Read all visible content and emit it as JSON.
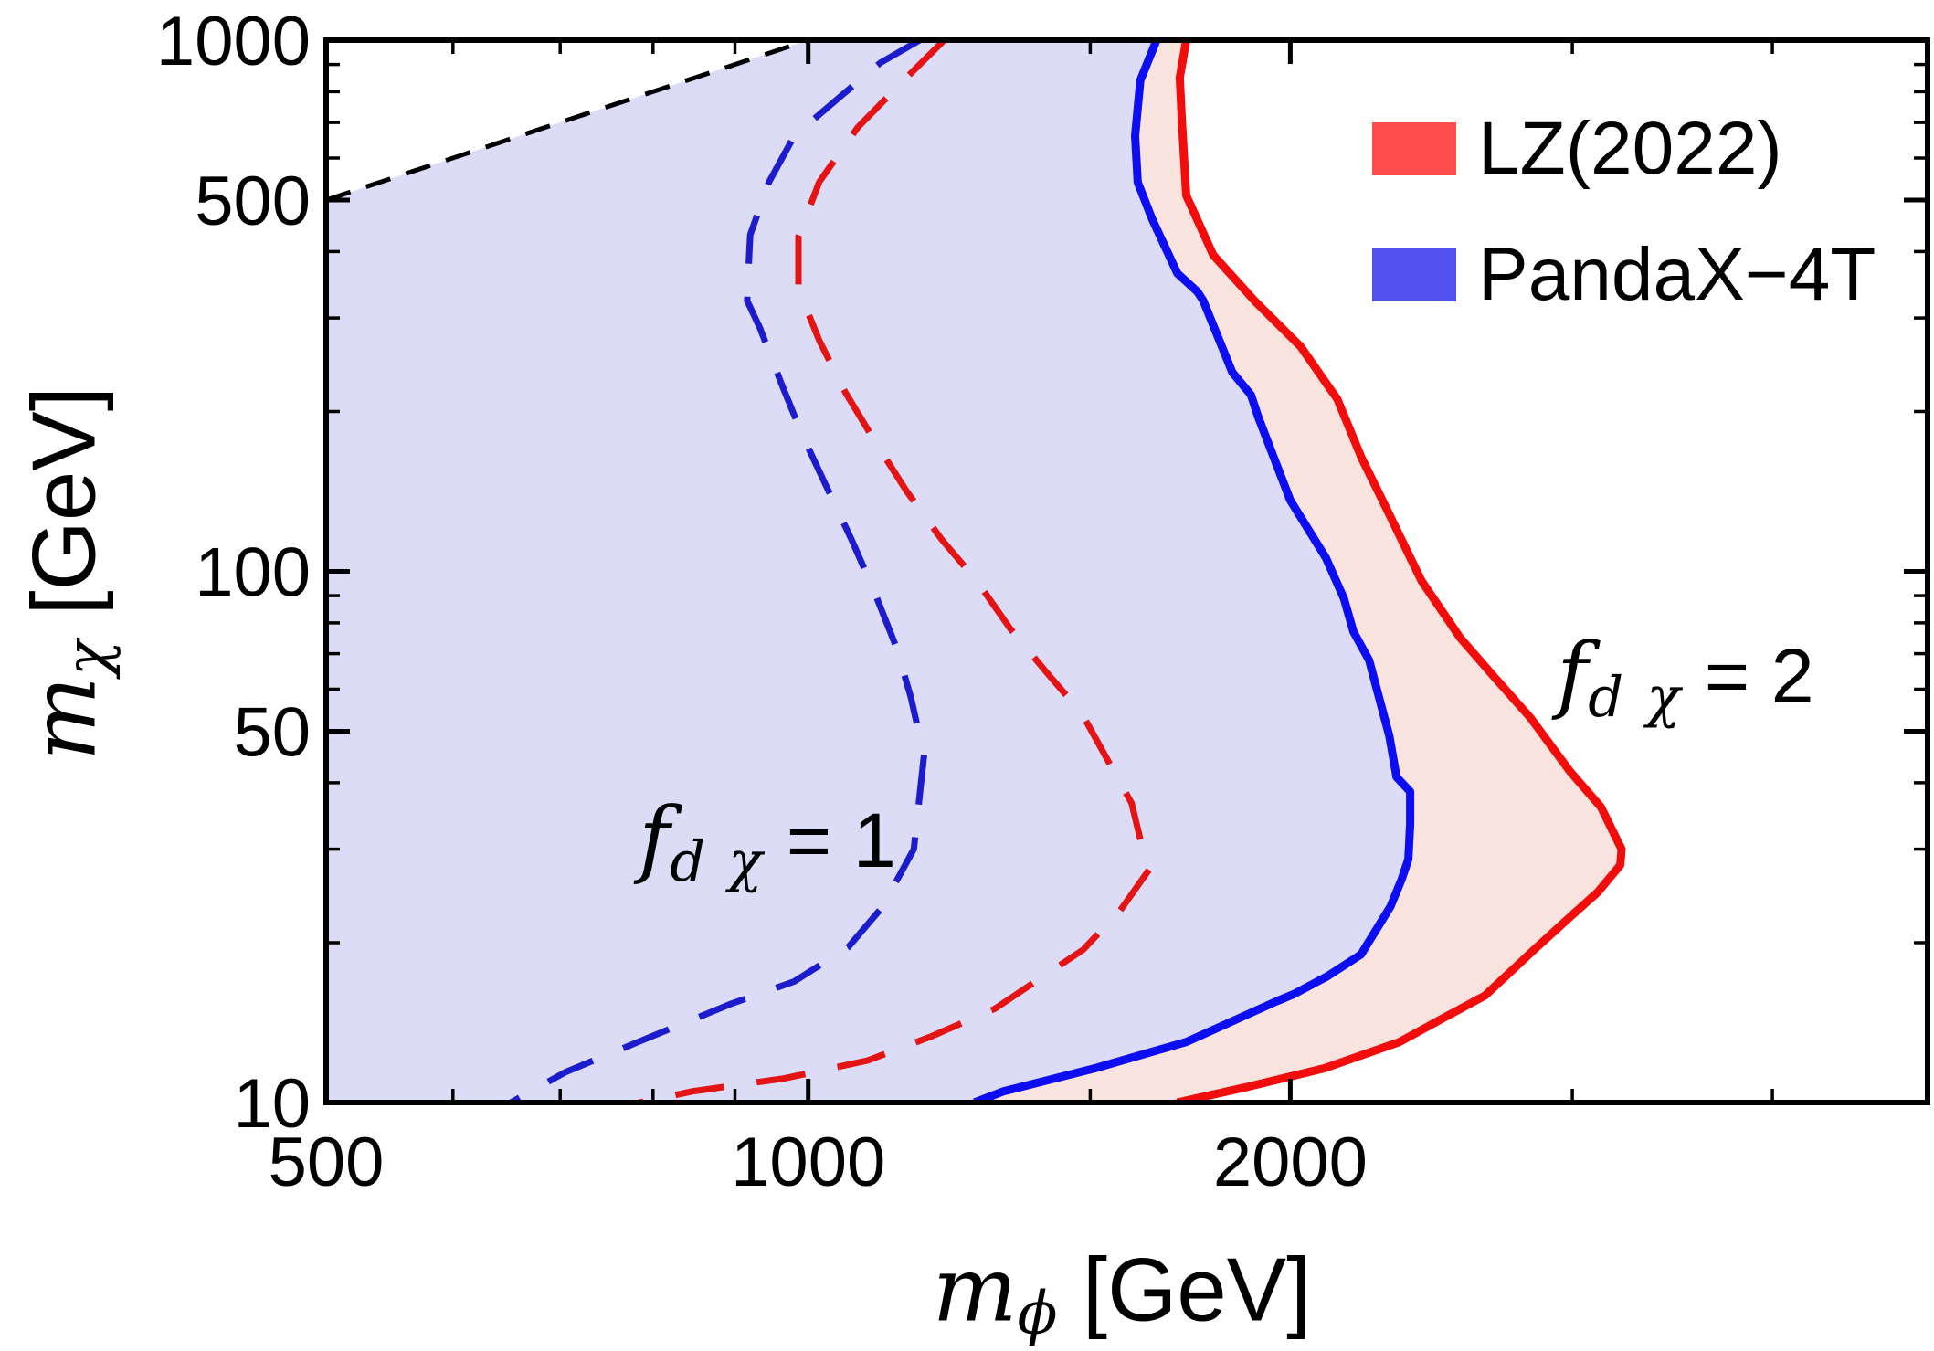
{
  "legend": {
    "items": [
      {
        "label": "LZ(2022)",
        "color": "#ff4d4d"
      },
      {
        "label": "PandaX−4T",
        "color": "#5353f0"
      }
    ]
  },
  "axis_labels": {
    "x": {
      "symbol": "m",
      "subscript": "ϕ",
      "unit": " [GeV]"
    },
    "y": {
      "symbol": "m",
      "subscript": "χ",
      "unit": " [GeV]"
    }
  },
  "chart_data": {
    "type": "line",
    "xlabel": "m_phi [GeV]",
    "ylabel": "m_chi [GeV]",
    "xscale": "log",
    "yscale": "log",
    "xlim": [
      500,
      5000
    ],
    "ylim": [
      10,
      1000
    ],
    "grid": false,
    "legend_position": "top-right",
    "x_major_ticks": [
      {
        "value": 500,
        "label": "500"
      },
      {
        "value": 1000,
        "label": "1000"
      },
      {
        "value": 2000,
        "label": "2000"
      }
    ],
    "x_minor_ticks": [
      600,
      700,
      800,
      900,
      1500,
      3000,
      4000
    ],
    "y_major_ticks": [
      {
        "value": 10,
        "label": "10"
      },
      {
        "value": 50,
        "label": "50"
      },
      {
        "value": 100,
        "label": "100"
      },
      {
        "value": 500,
        "label": "500"
      },
      {
        "value": 1000,
        "label": "1000"
      }
    ],
    "y_minor_ticks": [
      20,
      30,
      40,
      60,
      70,
      80,
      90,
      200,
      300,
      400,
      600,
      700,
      800,
      900
    ],
    "annotations": [
      {
        "f": "f",
        "sub": "d χ",
        "eq": " = 1",
        "text": "f_dχ = 1",
        "x": 943,
        "y": 31.4
      },
      {
        "f": "f",
        "sub": "d χ",
        "eq": " = 2",
        "text": "f_dχ = 2",
        "x": 3530,
        "y": 64
      }
    ],
    "series": [
      {
        "name": "LZ(2022) f_dchi=2 exclusion",
        "style": "solid",
        "width": 9,
        "color": "#f20d0d",
        "fill": "#f9e3df",
        "points": [
          [
            1722,
            1000
          ],
          [
            1706,
            850
          ],
          [
            1712,
            690
          ],
          [
            1722,
            510
          ],
          [
            1790,
            394
          ],
          [
            1900,
            323
          ],
          [
            2030,
            265
          ],
          [
            2140,
            211
          ],
          [
            2215,
            164
          ],
          [
            2306,
            128
          ],
          [
            2415,
            96
          ],
          [
            2553,
            75
          ],
          [
            2685,
            63
          ],
          [
            2825,
            53
          ],
          [
            2990,
            42
          ],
          [
            3126,
            36
          ],
          [
            3220,
            30
          ],
          [
            3214,
            28
          ],
          [
            3112,
            24.9
          ],
          [
            2978,
            22.1
          ],
          [
            2840,
            19.4
          ],
          [
            2646,
            15.9
          ],
          [
            2500,
            14.5
          ],
          [
            2340,
            13
          ],
          [
            2100,
            11.6
          ],
          [
            1880,
            10.7
          ],
          [
            1700,
            10
          ]
        ]
      },
      {
        "name": "PandaX-4T f_dchi=2 exclusion",
        "style": "solid",
        "width": 9,
        "color": "#0d0df2",
        "fill": "#dcdcf6",
        "points": [
          [
            1650,
            1000
          ],
          [
            1612,
            840
          ],
          [
            1600,
            660
          ],
          [
            1606,
            540
          ],
          [
            1640,
            460
          ],
          [
            1700,
            364
          ],
          [
            1750,
            336
          ],
          [
            1765,
            323
          ],
          [
            1840,
            237
          ],
          [
            1890,
            215
          ],
          [
            1910,
            195
          ],
          [
            2000,
            136
          ],
          [
            2105,
            106
          ],
          [
            2160,
            89
          ],
          [
            2190,
            77
          ],
          [
            2240,
            68
          ],
          [
            2265,
            60
          ],
          [
            2306,
            49
          ],
          [
            2330,
            41
          ],
          [
            2376,
            38.5
          ],
          [
            2376,
            33.5
          ],
          [
            2370,
            28.7
          ],
          [
            2347,
            26.3
          ],
          [
            2310,
            23.4
          ],
          [
            2214,
            19
          ],
          [
            2110,
            17.3
          ],
          [
            2010,
            16
          ],
          [
            1960,
            15.5
          ],
          [
            1722,
            13
          ],
          [
            1510,
            11.6
          ],
          [
            1324,
            10.5
          ],
          [
            1270,
            10
          ]
        ]
      },
      {
        "name": "LZ(2022) f_dchi=1 contour",
        "style": "dashed",
        "width": 7,
        "dash": "54 36",
        "color": "#e41414",
        "fill": null,
        "points": [
          [
            1216,
            1000
          ],
          [
            1161,
            871
          ],
          [
            1074,
            686
          ],
          [
            1016,
            541
          ],
          [
            986,
            427
          ],
          [
            986,
            340
          ],
          [
            1016,
            272
          ],
          [
            1055,
            217
          ],
          [
            1099,
            177
          ],
          [
            1151,
            142
          ],
          [
            1211,
            115
          ],
          [
            1274,
            96
          ],
          [
            1337,
            78
          ],
          [
            1406,
            65
          ],
          [
            1482,
            54
          ],
          [
            1592,
            36.6
          ],
          [
            1620,
            29.4
          ],
          [
            1636,
            27.7
          ],
          [
            1566,
            23
          ],
          [
            1485,
            19.4
          ],
          [
            1307,
            15
          ],
          [
            1192,
            13.3
          ],
          [
            1089,
            12
          ],
          [
            966,
            11.1
          ],
          [
            847,
            10.5
          ],
          [
            784,
            10
          ]
        ]
      },
      {
        "name": "PandaX-4T f_dchi=1 contour",
        "style": "dashed",
        "width": 7,
        "dash": "54 36",
        "color": "#1c1ccd",
        "fill": null,
        "points": [
          [
            1174,
            1000
          ],
          [
            1109,
            906
          ],
          [
            1042,
            773
          ],
          [
            980,
            660
          ],
          [
            945,
            540
          ],
          [
            920,
            430
          ],
          [
            917,
            354
          ],
          [
            916,
            323
          ],
          [
            933,
            287
          ],
          [
            962,
            226
          ],
          [
            992,
            180
          ],
          [
            1026,
            145
          ],
          [
            1064,
            115
          ],
          [
            1099,
            92
          ],
          [
            1135,
            72
          ],
          [
            1159,
            58
          ],
          [
            1181,
            45
          ],
          [
            1164,
            30
          ],
          [
            1112,
            23.3
          ],
          [
            1059,
            19.6
          ],
          [
            980,
            16.9
          ],
          [
            893,
            15.3
          ],
          [
            783,
            13
          ],
          [
            705,
            11.4
          ],
          [
            652,
            10
          ]
        ]
      },
      {
        "name": "kinematic boundary m_chi = m_phi",
        "style": "dashed",
        "width": 5,
        "dash": "28 18",
        "color": "#000000",
        "fill": null,
        "points": [
          [
            500,
            500
          ],
          [
            1000,
            1000
          ]
        ]
      }
    ],
    "shaded_regions": [
      {
        "name": "LZ(2022) excluded region",
        "series": 0,
        "fill": "#f9e3df"
      },
      {
        "name": "PandaX-4T excluded region",
        "series": 1,
        "fill": "#dcdcf6"
      }
    ]
  }
}
